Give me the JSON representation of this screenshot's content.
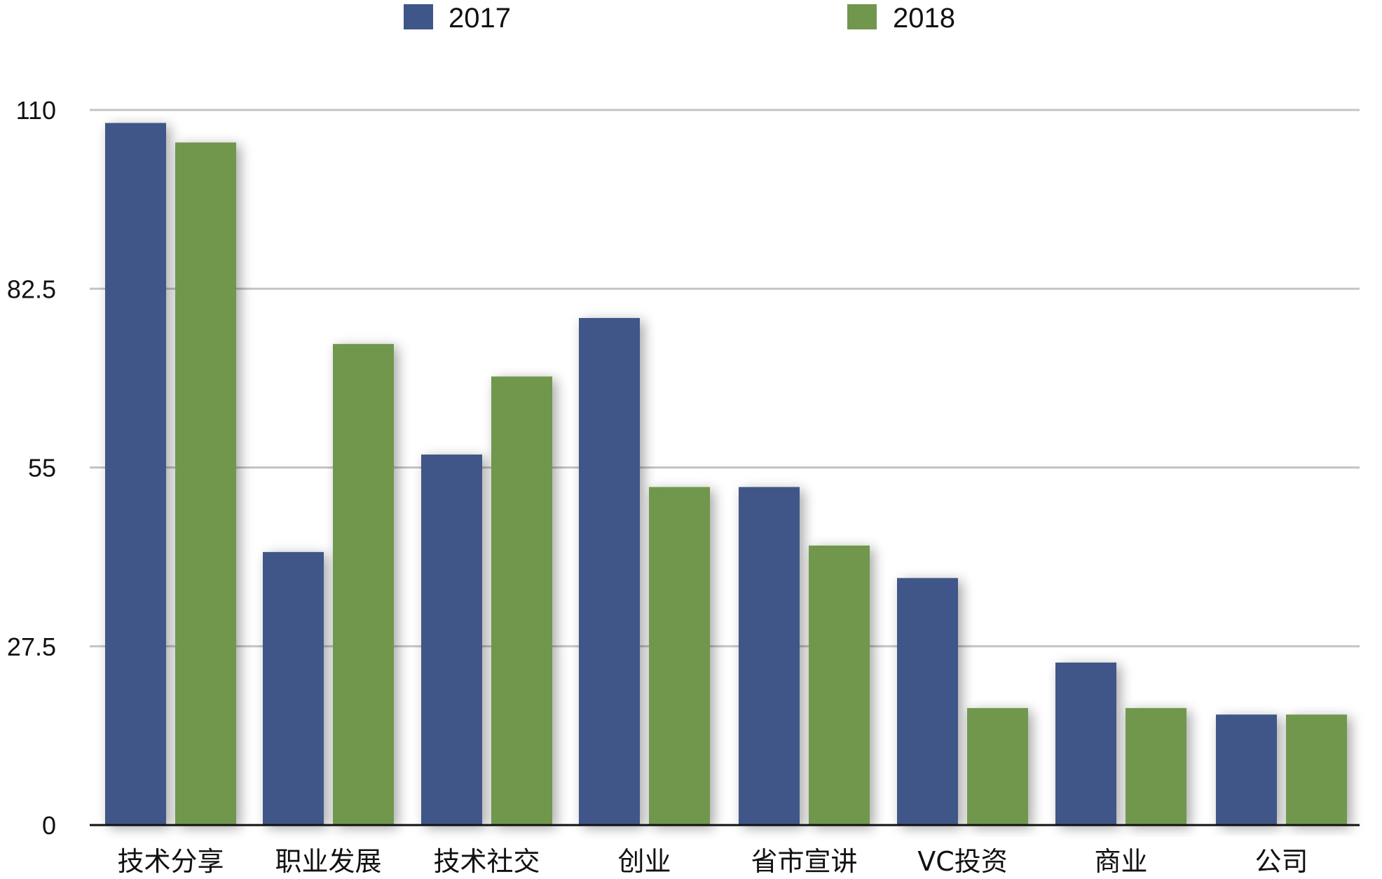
{
  "chart_data": {
    "type": "bar",
    "categories": [
      "技术分享",
      "职业发展",
      "技术社交",
      "创业",
      "省市宣讲",
      "VC投资",
      "商业",
      "公司"
    ],
    "series": [
      {
        "name": "2017",
        "color": "#3f5688",
        "values": [
          108,
          42,
          57,
          78,
          52,
          38,
          25,
          17
        ]
      },
      {
        "name": "2018",
        "color": "#71974d",
        "values": [
          105,
          74,
          69,
          52,
          43,
          18,
          18,
          17
        ]
      }
    ],
    "yticks": [
      0,
      27.5,
      55,
      82.5,
      110
    ],
    "ytick_labels": [
      "0",
      "27.5",
      "55",
      "82.5",
      "110"
    ],
    "ylim": [
      0,
      110
    ],
    "grid": true,
    "legend_position": "top-center"
  }
}
